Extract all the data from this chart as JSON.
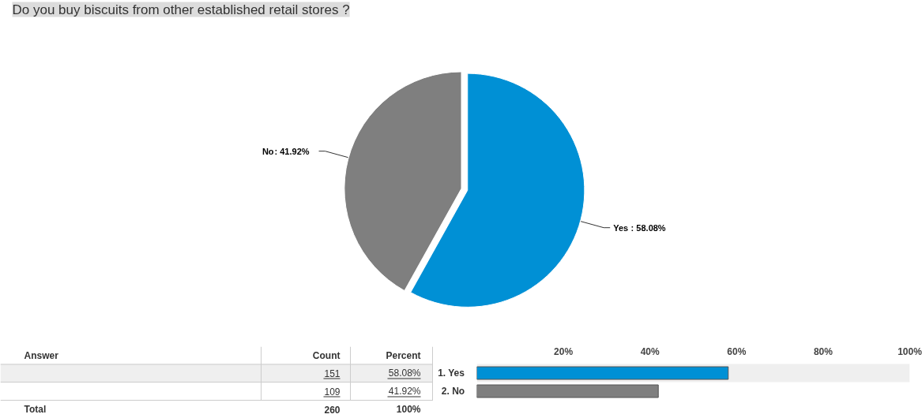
{
  "chart_data": [
    {
      "type": "pie",
      "title": "Do you buy biscuits from other established retail stores ?",
      "categories": [
        "Yes",
        "No"
      ],
      "values": [
        58.08,
        41.92
      ],
      "colors": [
        "#0090d5",
        "#7f7f7f"
      ],
      "value_labels": [
        ": 58.08%",
        ": 41.92%"
      ]
    },
    {
      "type": "bar",
      "orientation": "horizontal",
      "categories": [
        "1.  Yes",
        "2.  No"
      ],
      "values": [
        58.08,
        41.92
      ],
      "colors": [
        "#0090d5",
        "#7f7f7f"
      ],
      "xlim": [
        0,
        100
      ],
      "xticks": [
        {
          "value": 20,
          "label": "20%"
        },
        {
          "value": 40,
          "label": "40%"
        },
        {
          "value": 60,
          "label": "60%"
        },
        {
          "value": 80,
          "label": "80%"
        },
        {
          "value": 100,
          "label": "100%"
        }
      ],
      "value_labels": [
        "58.08%",
        "41.92%"
      ],
      "annotations": [
        "Answer",
        "Count",
        "Percent",
        "151",
        "109",
        "Total",
        "260",
        "100%"
      ]
    }
  ]
}
